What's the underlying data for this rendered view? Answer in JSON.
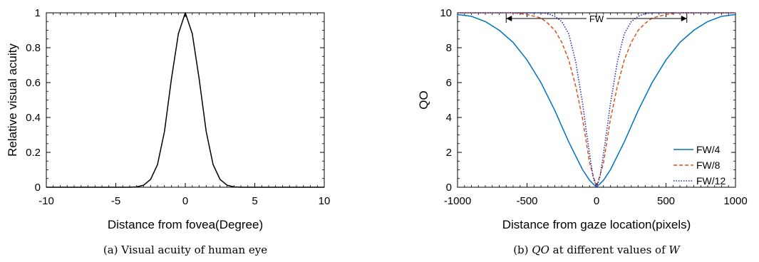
{
  "chart_data": [
    {
      "type": "line",
      "panel_id": "a",
      "caption": "(a) Visual acuity of human eye",
      "xlabel": "Distance from fovea(Degree)",
      "ylabel": "Relative visual acuity",
      "xlim": [
        -10,
        10
      ],
      "ylim": [
        0,
        1
      ],
      "xticks": [
        -10,
        -5,
        0,
        5,
        10
      ],
      "xtick_labels": [
        "-10",
        "-5",
        "0",
        "5",
        "10"
      ],
      "yticks": [
        0,
        0.2,
        0.4,
        0.6,
        0.8,
        1
      ],
      "ytick_labels": [
        "0",
        "0.2",
        "0.4",
        "0.6",
        "0.8",
        "1"
      ],
      "grid": false,
      "series": [
        {
          "color": "#000000",
          "style": "solid",
          "x": [
            -10,
            -4,
            -3.5,
            -3,
            -2.5,
            -2,
            -1.5,
            -1,
            -0.5,
            0,
            0.5,
            1,
            1.5,
            2,
            2.5,
            3,
            3.5,
            4,
            10
          ],
          "y": [
            0,
            0,
            0.002,
            0.012,
            0.045,
            0.13,
            0.32,
            0.62,
            0.88,
            1.0,
            0.88,
            0.62,
            0.32,
            0.13,
            0.045,
            0.012,
            0.002,
            0,
            0
          ]
        }
      ]
    },
    {
      "type": "line",
      "panel_id": "b",
      "caption_parts": [
        "(b) ",
        "QO",
        " at different values of ",
        "W"
      ],
      "xlabel": "Distance from gaze location(pixels)",
      "ylabel": "QO",
      "xlim": [
        -1000,
        1000
      ],
      "ylim": [
        0,
        10
      ],
      "xticks": [
        -1000,
        -500,
        0,
        500,
        1000
      ],
      "xtick_labels": [
        "-1000",
        "-500",
        "0",
        "500",
        "1000"
      ],
      "yticks": [
        0,
        2,
        4,
        6,
        8,
        10
      ],
      "ytick_labels": [
        "0",
        "2",
        "4",
        "6",
        "8",
        "10"
      ],
      "grid": false,
      "legend_position": "bottom-right",
      "annotation": {
        "text": "FW",
        "x_from": -650,
        "x_to": 650,
        "y": 10
      },
      "series": [
        {
          "name": "FW/4",
          "color": "#0072BD",
          "style": "solid",
          "x": [
            -1000,
            -900,
            -800,
            -700,
            -600,
            -500,
            -400,
            -300,
            -200,
            -100,
            -50,
            0,
            50,
            100,
            200,
            300,
            400,
            500,
            600,
            700,
            800,
            900,
            1000
          ],
          "y": [
            9.9,
            9.8,
            9.5,
            9.0,
            8.3,
            7.3,
            6.0,
            4.4,
            2.6,
            1.0,
            0.4,
            0.0,
            0.4,
            1.0,
            2.6,
            4.4,
            6.0,
            7.3,
            8.3,
            9.0,
            9.5,
            9.8,
            9.9
          ]
        },
        {
          "name": "FW/8",
          "color": "#D95319",
          "style": "dashed",
          "x": [
            -1000,
            -600,
            -500,
            -400,
            -350,
            -300,
            -250,
            -200,
            -150,
            -100,
            -50,
            0,
            50,
            100,
            150,
            200,
            250,
            300,
            350,
            400,
            500,
            600,
            1000
          ],
          "y": [
            10,
            10,
            9.9,
            9.7,
            9.4,
            9.0,
            8.3,
            7.3,
            5.8,
            3.9,
            1.4,
            0.0,
            1.4,
            3.9,
            5.8,
            7.3,
            8.3,
            9.0,
            9.4,
            9.7,
            9.9,
            10,
            10
          ]
        },
        {
          "name": "FW/12",
          "color": "#2020C0",
          "style": "dotted",
          "x": [
            -1000,
            -400,
            -350,
            -300,
            -250,
            -200,
            -150,
            -100,
            -75,
            -50,
            -25,
            0,
            25,
            50,
            75,
            100,
            150,
            200,
            250,
            300,
            350,
            400,
            1000
          ],
          "y": [
            10,
            10,
            9.95,
            9.8,
            9.5,
            8.8,
            7.2,
            4.8,
            3.3,
            1.9,
            0.6,
            0.0,
            0.6,
            1.9,
            3.3,
            4.8,
            7.2,
            8.8,
            9.5,
            9.8,
            9.95,
            10,
            10
          ]
        }
      ]
    }
  ]
}
